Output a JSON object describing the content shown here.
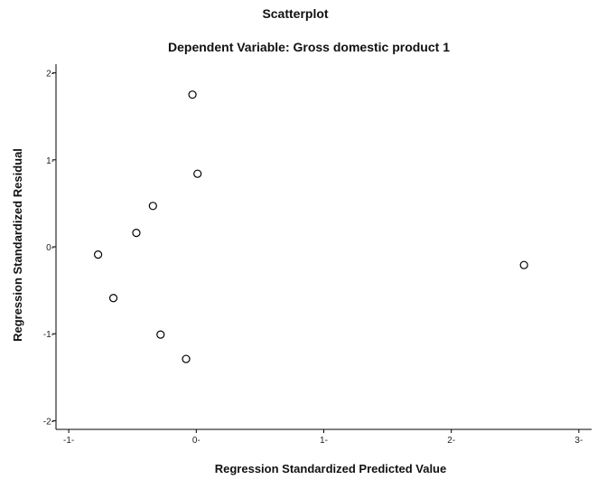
{
  "chart_data": {
    "type": "scatter",
    "title": "Scatterplot",
    "subtitle": "Dependent Variable: Gross domestic product 1",
    "xlabel": "Regression Standardized Predicted Value",
    "ylabel": "Regression Standardized Residual",
    "xlim": [
      -1.1,
      3.1
    ],
    "ylim": [
      -2.1,
      2.1
    ],
    "xticks": [
      -1,
      0,
      1,
      2,
      3
    ],
    "yticks": [
      -2,
      -1,
      0,
      1,
      2
    ],
    "xtick_labels": [
      "-1-",
      "0-",
      "1-",
      "2-",
      "3-"
    ],
    "ytick_labels": [
      "-2-",
      "-1-",
      "0-",
      "1-",
      "2-"
    ],
    "grid": false,
    "legend": "none",
    "series": [
      {
        "marker": "open-circle",
        "x": [
          -0.03,
          0.01,
          -0.34,
          -0.47,
          -0.77,
          -0.65,
          -0.28,
          -0.08,
          2.57
        ],
        "y": [
          1.75,
          0.84,
          0.47,
          0.16,
          -0.09,
          -0.59,
          -1.01,
          -1.29,
          -0.21
        ]
      }
    ]
  }
}
